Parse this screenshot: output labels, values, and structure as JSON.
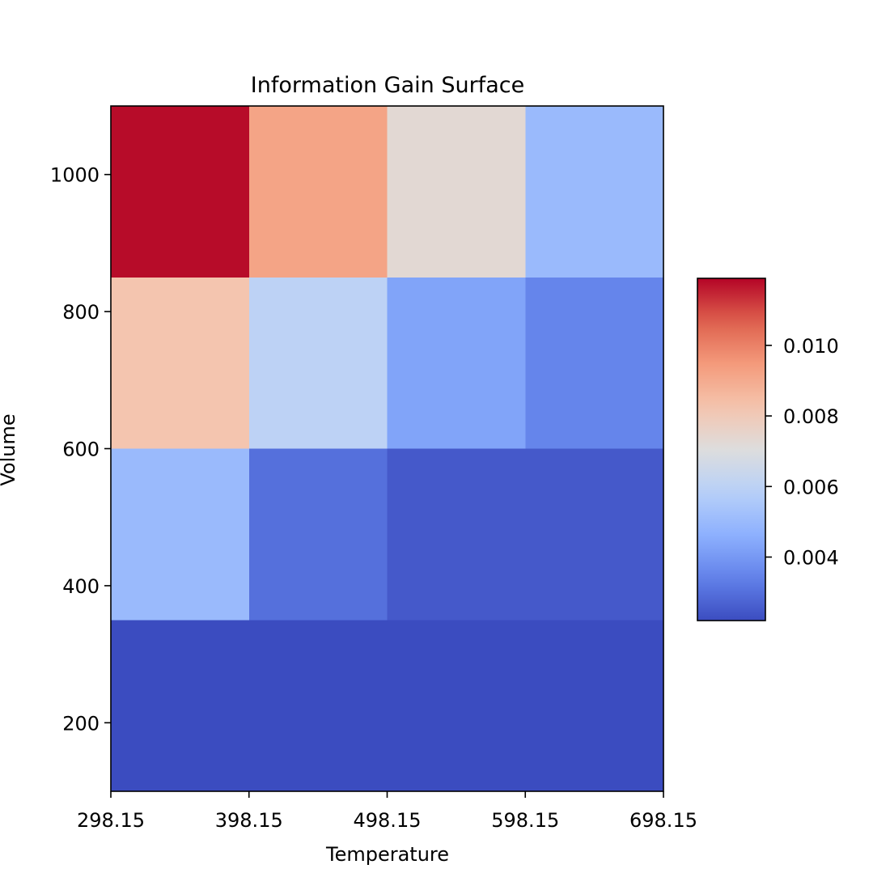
{
  "chart_data": {
    "type": "heatmap",
    "title": "Information Gain Surface",
    "xlabel": "Temperature",
    "ylabel": "Volume",
    "x_edges": [
      298.15,
      398.15,
      498.15,
      598.15,
      698.15
    ],
    "y_edges": [
      100,
      350,
      600,
      850,
      1100
    ],
    "xticks": [
      298.15,
      398.15,
      498.15,
      598.15,
      698.15
    ],
    "xtick_labels": [
      "298.15",
      "398.15",
      "498.15",
      "598.15",
      "698.15"
    ],
    "yticks": [
      200,
      400,
      600,
      800,
      1000
    ],
    "ytick_labels": [
      "200",
      "400",
      "600",
      "800",
      "1000"
    ],
    "values": [
      [
        0.0022,
        0.0022,
        0.0022,
        0.0022
      ],
      [
        0.005,
        0.003,
        0.0025,
        0.0025
      ],
      [
        0.0082,
        0.006,
        0.0043,
        0.0035
      ],
      [
        0.0118,
        0.0092,
        0.0073,
        0.005
      ]
    ],
    "colorbar": {
      "colormap": "coolwarm",
      "vmin": 0.0022,
      "vmax": 0.0119,
      "ticks": [
        0.004,
        0.006,
        0.008,
        0.01
      ],
      "tick_labels": [
        "0.004",
        "0.006",
        "0.008",
        "0.010"
      ]
    }
  }
}
